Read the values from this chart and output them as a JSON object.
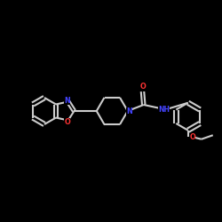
{
  "background_color": "#000000",
  "bond_color": "#cccccc",
  "N_color": "#4444ff",
  "O_color": "#ff3333",
  "line_width": 1.5,
  "fig_size": [
    2.5,
    2.5
  ],
  "dpi": 100,
  "xlim": [
    0,
    10
  ],
  "ylim": [
    0,
    10
  ],
  "font_size": 5.5
}
